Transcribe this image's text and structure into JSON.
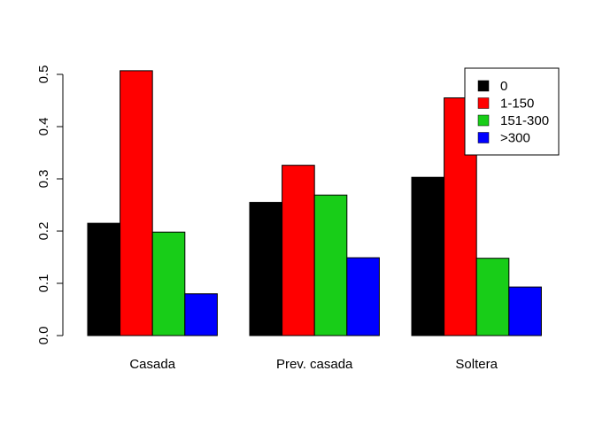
{
  "chart_data": {
    "type": "bar",
    "categories": [
      "Casada",
      "Prev. casada",
      "Soltera"
    ],
    "series": [
      {
        "name": "0",
        "color": "#000000",
        "values": [
          0.215,
          0.255,
          0.303
        ]
      },
      {
        "name": "1-150",
        "color": "#ff0000",
        "values": [
          0.507,
          0.326,
          0.455
        ]
      },
      {
        "name": "151-300",
        "color": "#18cd18",
        "values": [
          0.198,
          0.269,
          0.148
        ]
      },
      {
        "name": ">300",
        "color": "#0000ff",
        "values": [
          0.08,
          0.149,
          0.093
        ]
      }
    ],
    "ylim": [
      0,
      0.5
    ],
    "yticks": [
      "0.0",
      "0.1",
      "0.2",
      "0.3",
      "0.4",
      "0.5"
    ],
    "legend_position": "top-right",
    "grid": false,
    "title": "",
    "xlabel": "",
    "ylabel": ""
  }
}
